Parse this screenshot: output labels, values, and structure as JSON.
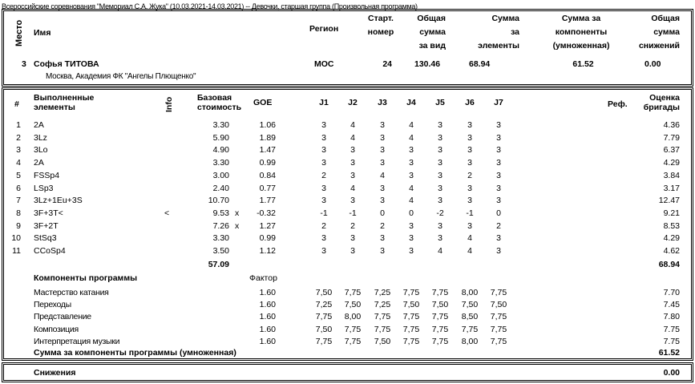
{
  "title": "Всероссийские соревнования \"Мемориал С.А. Жука\" (10.03.2021-14.03.2021)  --  Девочки, старшая группа  (Произвольная программа)",
  "header": {
    "place": "Место",
    "name": "Имя",
    "region": "Регион",
    "start_no": [
      "Старт.",
      "номер"
    ],
    "total": [
      "Общая",
      "сумма",
      "за вид"
    ],
    "tes": [
      "Сумма",
      "за",
      "элементы"
    ],
    "pcs": [
      "Сумма за",
      "компоненты",
      "(умноженная)"
    ],
    "ded": [
      "Общая",
      "сумма",
      "снижений"
    ]
  },
  "skater": {
    "place": "3",
    "name": "Софья ТИТОВА",
    "region": "МОС",
    "start_no": "24",
    "total": "130.46",
    "tes": "68.94",
    "pcs": "61.52",
    "ded": "0.00",
    "club": "Москва, Академия ФК \"Ангелы Плющенко\""
  },
  "elements_header": {
    "num": "#",
    "element": [
      "Выполненные",
      "элементы"
    ],
    "info": "Info",
    "base": [
      "Базовая",
      "стоимость"
    ],
    "goe": "GOE",
    "judges": [
      "J1",
      "J2",
      "J3",
      "J4",
      "J5",
      "J6",
      "J7"
    ],
    "ref": "Реф.",
    "score": [
      "Оценка",
      "бригады"
    ]
  },
  "elements": [
    {
      "n": "1",
      "el": "2A",
      "info": "",
      "bv": "3.30",
      "x": "",
      "goe": "1.06",
      "j": [
        "3",
        "4",
        "3",
        "4",
        "3",
        "3",
        "3"
      ],
      "score": "4.36"
    },
    {
      "n": "2",
      "el": "3Lz",
      "info": "",
      "bv": "5.90",
      "x": "",
      "goe": "1.89",
      "j": [
        "3",
        "4",
        "3",
        "4",
        "3",
        "3",
        "3"
      ],
      "score": "7.79"
    },
    {
      "n": "3",
      "el": "3Lo",
      "info": "",
      "bv": "4.90",
      "x": "",
      "goe": "1.47",
      "j": [
        "3",
        "3",
        "3",
        "3",
        "3",
        "3",
        "3"
      ],
      "score": "6.37"
    },
    {
      "n": "4",
      "el": "2A",
      "info": "",
      "bv": "3.30",
      "x": "",
      "goe": "0.99",
      "j": [
        "3",
        "3",
        "3",
        "3",
        "3",
        "3",
        "3"
      ],
      "score": "4.29"
    },
    {
      "n": "5",
      "el": "FSSp4",
      "info": "",
      "bv": "3.00",
      "x": "",
      "goe": "0.84",
      "j": [
        "2",
        "3",
        "4",
        "3",
        "3",
        "2",
        "3"
      ],
      "score": "3.84"
    },
    {
      "n": "6",
      "el": "LSp3",
      "info": "",
      "bv": "2.40",
      "x": "",
      "goe": "0.77",
      "j": [
        "3",
        "4",
        "3",
        "4",
        "3",
        "3",
        "3"
      ],
      "score": "3.17"
    },
    {
      "n": "7",
      "el": "3Lz+1Eu+3S",
      "info": "",
      "bv": "10.70",
      "x": "",
      "goe": "1.77",
      "j": [
        "3",
        "3",
        "3",
        "4",
        "3",
        "3",
        "3"
      ],
      "score": "12.47"
    },
    {
      "n": "8",
      "el": "3F+3T<",
      "info": "<",
      "bv": "9.53",
      "x": "x",
      "goe": "-0.32",
      "j": [
        "-1",
        "-1",
        "0",
        "0",
        "-2",
        "-1",
        "0"
      ],
      "score": "9.21"
    },
    {
      "n": "9",
      "el": "3F+2T",
      "info": "",
      "bv": "7.26",
      "x": "x",
      "goe": "1.27",
      "j": [
        "2",
        "2",
        "2",
        "3",
        "3",
        "3",
        "2"
      ],
      "score": "8.53"
    },
    {
      "n": "10",
      "el": "StSq3",
      "info": "",
      "bv": "3.30",
      "x": "",
      "goe": "0.99",
      "j": [
        "3",
        "3",
        "3",
        "3",
        "3",
        "4",
        "3"
      ],
      "score": "4.29"
    },
    {
      "n": "11",
      "el": "CCoSp4",
      "info": "",
      "bv": "3.50",
      "x": "",
      "goe": "1.12",
      "j": [
        "3",
        "3",
        "3",
        "3",
        "4",
        "4",
        "3"
      ],
      "score": "4.62"
    }
  ],
  "base_total": "57.09",
  "tes_total": "68.94",
  "components_header": {
    "title": "Компоненты программы",
    "factor": "Фактор"
  },
  "components": [
    {
      "name": "Мастерство катания",
      "factor": "1.60",
      "j": [
        "7,50",
        "7,75",
        "7,25",
        "7,75",
        "7,75",
        "8,00",
        "7,75"
      ],
      "score": "7.70"
    },
    {
      "name": "Переходы",
      "factor": "1.60",
      "j": [
        "7,25",
        "7,50",
        "7,25",
        "7,50",
        "7,50",
        "7,50",
        "7,50"
      ],
      "score": "7.45"
    },
    {
      "name": "Представление",
      "factor": "1.60",
      "j": [
        "7,75",
        "8,00",
        "7,75",
        "7,75",
        "7,75",
        "8,50",
        "7,75"
      ],
      "score": "7.80"
    },
    {
      "name": "Композиция",
      "factor": "1.60",
      "j": [
        "7,50",
        "7,75",
        "7,75",
        "7,75",
        "7,75",
        "7,75",
        "7,75"
      ],
      "score": "7.75"
    },
    {
      "name": "Интерпретация музыки",
      "factor": "1.60",
      "j": [
        "7,75",
        "7,75",
        "7,50",
        "7,75",
        "7,75",
        "8,00",
        "7,75"
      ],
      "score": "7.75"
    }
  ],
  "pcs_total_label": "Сумма за компоненты программы (умноженная)",
  "pcs_total": "61.52",
  "deductions": {
    "label": "Снижения",
    "value": "0.00"
  }
}
